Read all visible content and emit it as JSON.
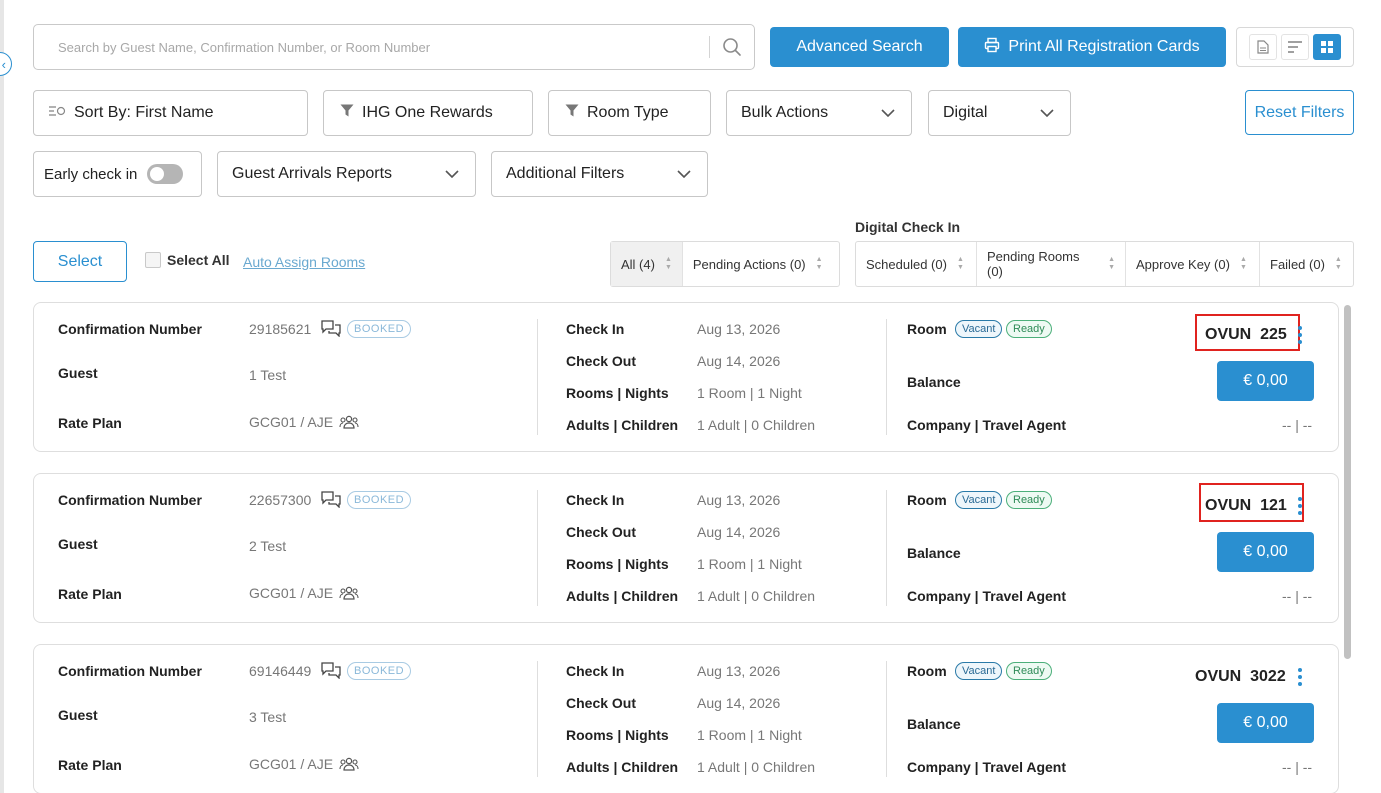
{
  "search": {
    "placeholder": "Search by Guest Name, Confirmation Number, or Room Number",
    "icon": "search-icon"
  },
  "toolbar": {
    "advanced_search": "Advanced Search",
    "print_all": "Print All Registration Cards",
    "view_icons": [
      "document-icon",
      "list-icon",
      "grid-icon"
    ]
  },
  "filters": {
    "sort_by": "Sort By: First Name",
    "ihg": "IHG One Rewards",
    "room_type": "Room Type",
    "bulk_actions": "Bulk Actions",
    "digital": "Digital",
    "reset": "Reset Filters",
    "early_checkin": "Early check in",
    "guest_arrivals": "Guest Arrivals Reports",
    "additional": "Additional Filters"
  },
  "selection": {
    "select": "Select",
    "select_all": "Select All",
    "auto_assign": "Auto Assign Rooms"
  },
  "status_tabs": [
    {
      "label": "All (4)"
    },
    {
      "label": "Pending Actions (0)"
    }
  ],
  "digital_checkin": {
    "title": "Digital Check In",
    "tabs": [
      {
        "label": "Scheduled (0)"
      },
      {
        "label": "Pending Rooms (0)"
      },
      {
        "label": "Approve Key (0)"
      },
      {
        "label": "Failed (0)"
      }
    ]
  },
  "labels": {
    "confirmation": "Confirmation Number",
    "guest": "Guest",
    "rate_plan": "Rate Plan",
    "check_in": "Check In",
    "check_out": "Check Out",
    "rooms_nights": "Rooms | Nights",
    "adults_children": "Adults | Children",
    "room": "Room",
    "balance": "Balance",
    "company": "Company | Travel Agent",
    "vacant": "Vacant",
    "ready": "Ready"
  },
  "reservations": [
    {
      "confirmation": "29185621",
      "status": "BOOKED",
      "guest": "1 Test",
      "rate_plan": "GCG01 / AJE",
      "check_in": "Aug 13, 2026",
      "check_out": "Aug 14, 2026",
      "rooms_nights": "1 Room | 1 Night",
      "adults_children": "1 Adult | 0 Children",
      "room_code": "OVUN",
      "room_number": "225",
      "balance": "€ 0,00",
      "company": "-- | --"
    },
    {
      "confirmation": "22657300",
      "status": "BOOKED",
      "guest": "2 Test",
      "rate_plan": "GCG01 / AJE",
      "check_in": "Aug 13, 2026",
      "check_out": "Aug 14, 2026",
      "rooms_nights": "1 Room | 1 Night",
      "adults_children": "1 Adult | 0 Children",
      "room_code": "OVUN",
      "room_number": "121",
      "balance": "€ 0,00",
      "company": "-- | --"
    },
    {
      "confirmation": "69146449",
      "status": "BOOKED",
      "guest": "3 Test",
      "rate_plan": "GCG01 / AJE",
      "check_in": "Aug 13, 2026",
      "check_out": "Aug 14, 2026",
      "rooms_nights": "1 Room | 1 Night",
      "adults_children": "1 Adult | 0 Children",
      "room_code": "OVUN",
      "room_number": "3022",
      "balance": "€ 0,00",
      "company": "-- | --"
    }
  ],
  "colors": {
    "accent": "#2a8fd0",
    "highlight": "#e0231f"
  }
}
